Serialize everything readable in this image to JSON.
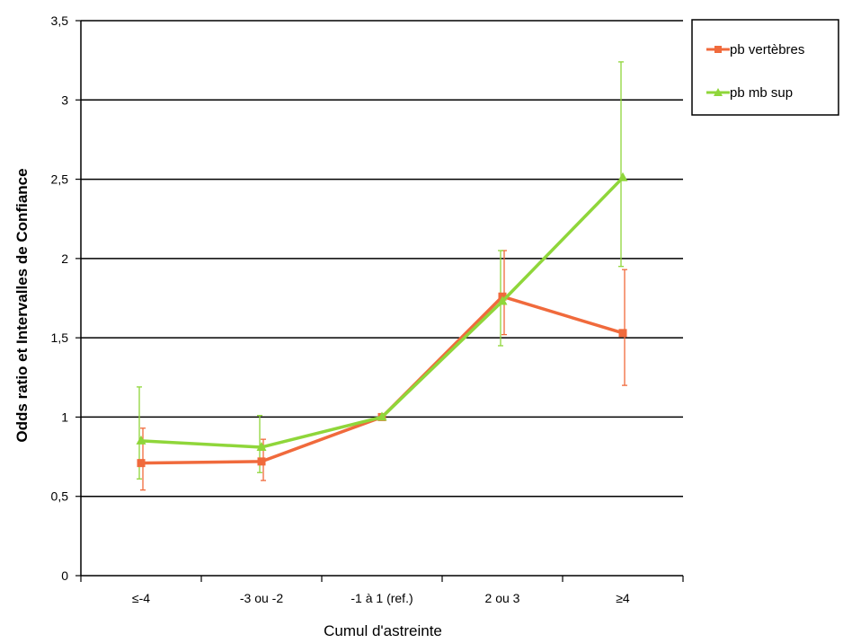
{
  "chart_data": {
    "type": "line",
    "title": "",
    "xlabel": "Cumul d'astreinte",
    "ylabel": "Odds ratio et Intervalles de Confiance",
    "categories": [
      "≤-4",
      "-3 ou -2",
      "-1 à 1 (ref.)",
      "2 ou 3",
      "≥4"
    ],
    "ylim": [
      0,
      3.5
    ],
    "yticks": [
      0,
      0.5,
      1,
      1.5,
      2,
      2.5,
      3,
      3.5
    ],
    "ytick_labels": [
      "0",
      "0,5",
      "1",
      "1,5",
      "2",
      "2,5",
      "3",
      "3,5"
    ],
    "grid": "horizontal",
    "legend_position": "right",
    "series": [
      {
        "name": "pb vertèbres",
        "color": "#f06a3c",
        "marker": "square",
        "values": [
          0.71,
          0.72,
          1.0,
          1.76,
          1.53
        ],
        "ci_low": [
          0.54,
          0.6,
          1.0,
          1.52,
          1.2
        ],
        "ci_high": [
          0.93,
          0.86,
          1.0,
          2.05,
          1.93
        ]
      },
      {
        "name": "pb mb sup",
        "color": "#8fd63a",
        "marker": "triangle",
        "values": [
          0.85,
          0.81,
          1.0,
          1.73,
          2.51
        ],
        "ci_low": [
          0.61,
          0.65,
          1.0,
          1.45,
          1.95
        ],
        "ci_high": [
          1.19,
          1.01,
          1.0,
          2.05,
          3.24
        ]
      }
    ]
  }
}
